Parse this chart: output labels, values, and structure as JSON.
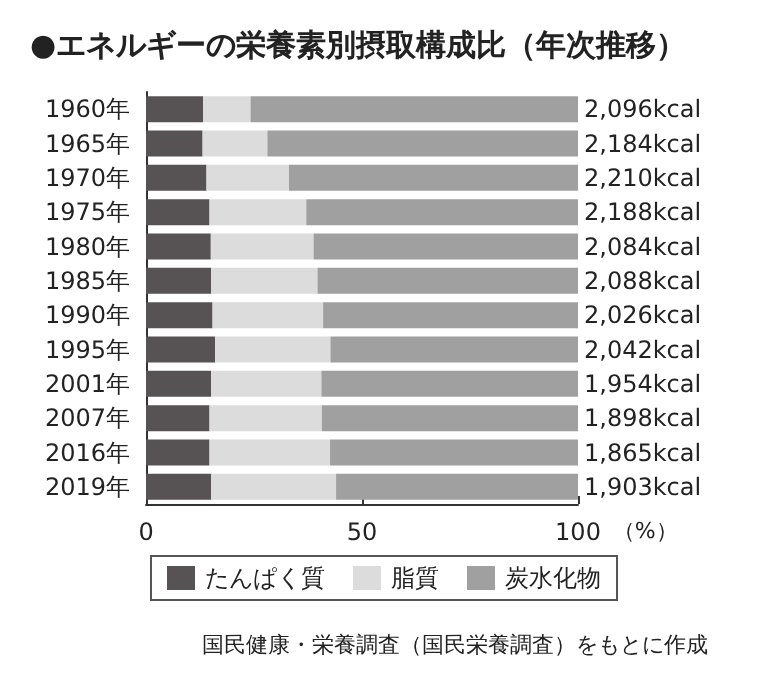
{
  "chart_data": {
    "type": "bar",
    "orientation": "horizontal",
    "stacked": true,
    "title": "●エネルギーの栄養素別摂取構成比（年次推移）",
    "xlabel": "（%）",
    "categories": [
      "1960年",
      "1965年",
      "1970年",
      "1975年",
      "1980年",
      "1985年",
      "1990年",
      "1995年",
      "2001年",
      "2007年",
      "2016年",
      "2019年"
    ],
    "series": [
      {
        "name": "たんぱく質",
        "color": "#575354",
        "values": [
          13.2,
          13.1,
          14.0,
          14.7,
          15.0,
          15.1,
          15.4,
          16.0,
          15.1,
          14.7,
          14.7,
          15.1
        ]
      },
      {
        "name": "脂質",
        "color": "#dcdcdc",
        "values": [
          11.0,
          15.0,
          19.1,
          22.4,
          23.8,
          24.6,
          25.6,
          26.7,
          25.5,
          26.0,
          27.9,
          28.9
        ]
      },
      {
        "name": "炭水化物",
        "color": "#a0a0a0",
        "values": [
          75.8,
          71.9,
          66.9,
          62.9,
          61.2,
          60.3,
          59.0,
          57.3,
          59.4,
          59.3,
          57.4,
          56.0
        ]
      }
    ],
    "xlim": [
      0,
      100
    ],
    "xticks": [
      0,
      50,
      100
    ],
    "grid": false,
    "legend": "bottom",
    "annotations": [
      "2,096kcal",
      "2,184kcal",
      "2,210kcal",
      "2,188kcal",
      "2,084kcal",
      "2,088kcal",
      "2,026kcal",
      "2,042kcal",
      "1,954kcal",
      "1,898kcal",
      "1,865kcal",
      "1,903kcal",
      "国民健康・栄養調査（国民栄養調査）をもとに作成"
    ]
  }
}
